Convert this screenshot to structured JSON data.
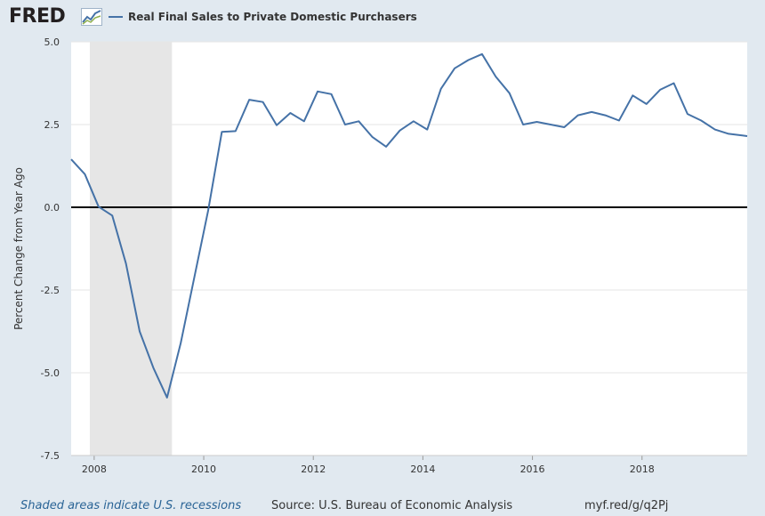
{
  "header": {
    "logo_text": "FRED",
    "legend_label": "Real Final Sales to Private Domestic Purchasers"
  },
  "footer": {
    "recession_note": "Shaded areas indicate U.S. recessions",
    "source": "Source: U.S. Bureau of Economic Analysis",
    "short_link": "myf.red/g/q2Pj"
  },
  "colors": {
    "series": "#4572a7",
    "recession": "#e6e6e6",
    "plot_bg": "#ffffff",
    "page_bg": "#e1e9f0",
    "zero_line": "#000000",
    "grid": "#e6e6e6"
  },
  "chart_data": {
    "type": "line",
    "title": "Real Final Sales to Private Domestic Purchasers",
    "xlabel": "",
    "ylabel": "Percent Change from Year Ago",
    "xlim": [
      2007.58,
      2019.92
    ],
    "ylim": [
      -7.5,
      5.0
    ],
    "yticks": [
      "5.0",
      "2.5",
      "0.0",
      "-2.5",
      "-5.0",
      "-7.5"
    ],
    "ytick_values": [
      5.0,
      2.5,
      0.0,
      -2.5,
      -5.0,
      -7.5
    ],
    "xticks": [
      "2008",
      "2010",
      "2012",
      "2014",
      "2016",
      "2018"
    ],
    "xtick_values": [
      2008,
      2010,
      2012,
      2014,
      2016,
      2018
    ],
    "grid": true,
    "recessions": [
      {
        "start": 2007.92,
        "end": 2009.42
      }
    ],
    "series": [
      {
        "name": "Real Final Sales to Private Domestic Purchasers",
        "x": [
          2007.58,
          2007.83,
          2008.08,
          2008.33,
          2008.58,
          2008.83,
          2009.08,
          2009.33,
          2009.58,
          2009.83,
          2010.08,
          2010.33,
          2010.58,
          2010.83,
          2011.08,
          2011.33,
          2011.58,
          2011.83,
          2012.08,
          2012.33,
          2012.58,
          2012.83,
          2013.08,
          2013.33,
          2013.58,
          2013.83,
          2014.08,
          2014.33,
          2014.58,
          2014.83,
          2015.08,
          2015.33,
          2015.58,
          2015.83,
          2016.08,
          2016.33,
          2016.58,
          2016.83,
          2017.08,
          2017.33,
          2017.58,
          2017.83,
          2018.08,
          2018.33,
          2018.58,
          2018.83,
          2019.08,
          2019.33,
          2019.58,
          2019.83,
          2019.92
        ],
        "values": [
          1.45,
          1.0,
          0.02,
          -0.25,
          -1.7,
          -3.75,
          -4.85,
          -5.75,
          -4.1,
          -2.1,
          -0.1,
          2.28,
          2.3,
          3.25,
          3.18,
          2.48,
          2.85,
          2.6,
          3.5,
          3.42,
          2.5,
          2.6,
          2.12,
          1.83,
          2.32,
          2.6,
          2.35,
          3.58,
          4.2,
          4.45,
          4.63,
          3.95,
          3.45,
          2.5,
          2.58,
          2.5,
          2.42,
          2.78,
          2.88,
          2.78,
          2.62,
          3.38,
          3.12,
          3.55,
          3.75,
          2.82,
          2.62,
          2.35,
          2.22,
          2.17,
          2.15
        ]
      }
    ]
  }
}
